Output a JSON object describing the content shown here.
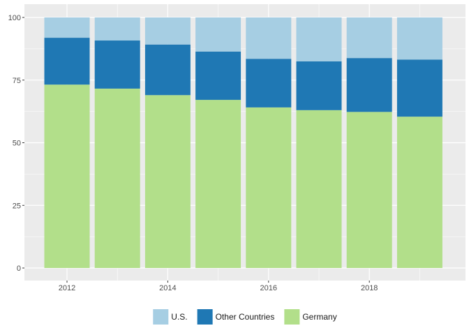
{
  "chart_data": {
    "type": "bar",
    "stacked": true,
    "title": "",
    "xlabel": "",
    "ylabel": "",
    "x": [
      2012,
      2013,
      2014,
      2015,
      2016,
      2017,
      2018,
      2019
    ],
    "x_tick_labels": [
      "2012",
      "2014",
      "2016",
      "2018"
    ],
    "x_tick_values": [
      2012,
      2014,
      2016,
      2018
    ],
    "y_ticks": [
      0,
      25,
      50,
      75,
      100
    ],
    "y_tick_labels": [
      "0",
      "25",
      "50",
      "75",
      "100"
    ],
    "ylim": [
      0,
      100
    ],
    "grid": true,
    "legend_position": "bottom",
    "series": [
      {
        "name": "Germany",
        "color": "#b2df8a",
        "values": [
          73.2,
          71.6,
          69.0,
          67.1,
          64.1,
          63.0,
          62.3,
          60.4
        ]
      },
      {
        "name": "Other Countries",
        "color": "#1f78b4",
        "values": [
          18.7,
          19.2,
          20.2,
          19.3,
          19.4,
          19.5,
          21.5,
          22.8
        ]
      },
      {
        "name": "U.S.",
        "color": "#a6cee3",
        "values": [
          8.1,
          9.2,
          10.8,
          13.6,
          16.5,
          17.5,
          16.2,
          16.8
        ]
      }
    ],
    "legend_order": [
      "U.S.",
      "Other Countries",
      "Germany"
    ]
  }
}
